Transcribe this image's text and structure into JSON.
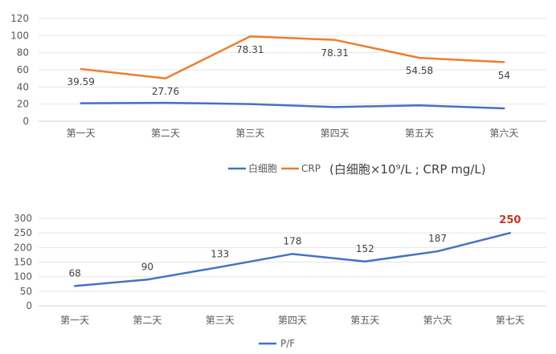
{
  "chart_data": [
    {
      "type": "line",
      "categories": [
        "第一天",
        "第二天",
        "第三天",
        "第四天",
        "第五天",
        "第六天"
      ],
      "ylim": [
        0,
        120
      ],
      "yticks": [
        0,
        20,
        40,
        60,
        80,
        100,
        120
      ],
      "grid": true,
      "legend_position": "bottom-center",
      "series": [
        {
          "name": "白细胞",
          "color": "#4472C4",
          "values": [
            21,
            21.5,
            20,
            16.5,
            18.5,
            15
          ]
        },
        {
          "name": "CRP",
          "color": "#ED7D31",
          "values": [
            61,
            50,
            99,
            95,
            74,
            69
          ]
        }
      ],
      "data_labels": [
        "39.59",
        "27.76",
        "78.31",
        "78.31",
        "54.58",
        "54"
      ],
      "unit_note": "(白细胞×10⁹/L ; CRP mg/L)"
    },
    {
      "type": "line",
      "categories": [
        "第一天",
        "第二天",
        "第三天",
        "第四天",
        "第五天",
        "第六天",
        "第七天"
      ],
      "ylim": [
        0,
        300
      ],
      "yticks": [
        0,
        50,
        100,
        150,
        200,
        250,
        300
      ],
      "grid": true,
      "legend_position": "bottom-center",
      "series": [
        {
          "name": "P/F",
          "color": "#4472C4",
          "values": [
            68,
            90,
            133,
            178,
            152,
            187,
            250
          ]
        }
      ],
      "data_labels": [
        "68",
        "90",
        "133",
        "178",
        "152",
        "187",
        "250"
      ],
      "highlight_color": "#C0392B"
    }
  ]
}
